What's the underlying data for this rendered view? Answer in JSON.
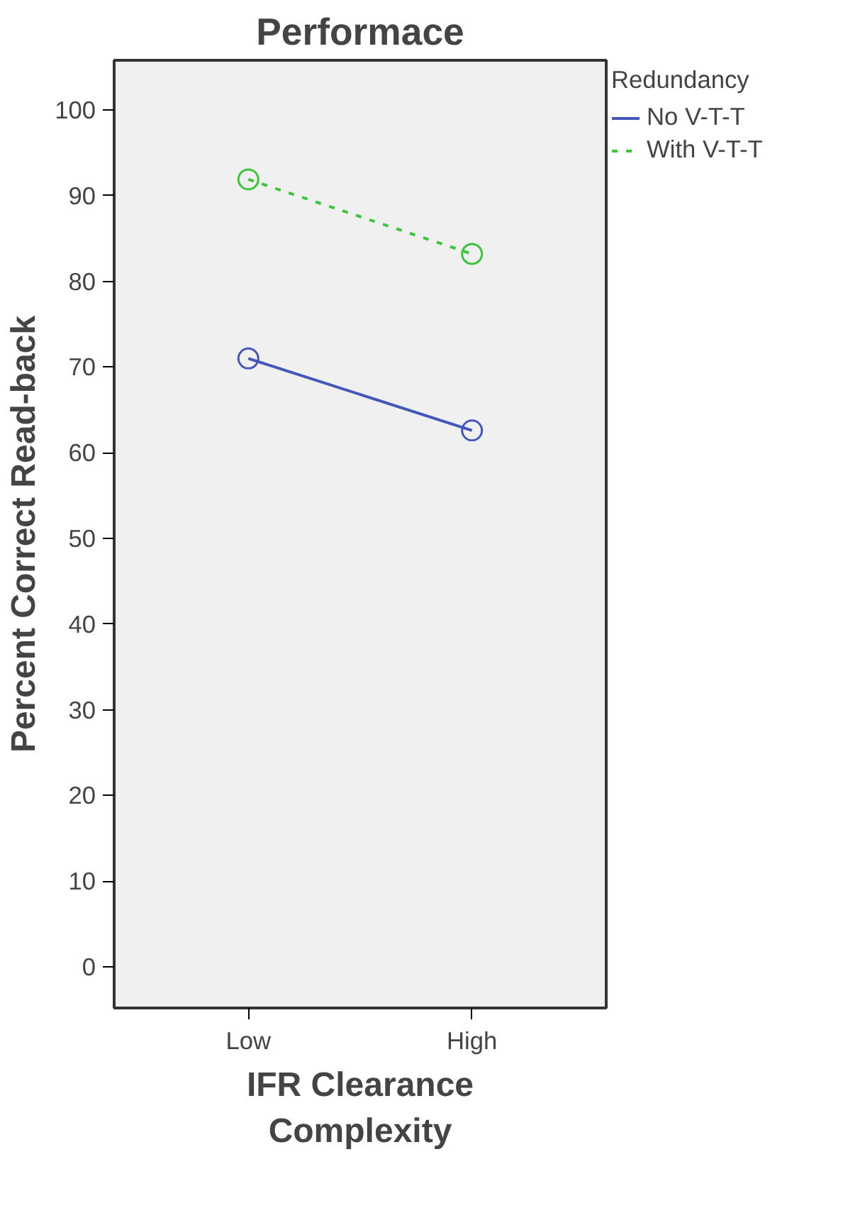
{
  "chart_data": {
    "type": "line",
    "title": "Performace",
    "xlabel": "IFR Clearance\nComplexity",
    "ylabel": "Percent Correct Read-back",
    "legend_title": "Redundancy",
    "categories": [
      "Low",
      "High"
    ],
    "series": [
      {
        "name": "No V-T-T",
        "color": "#4457b8",
        "values": [
          71.0,
          62.6
        ],
        "line_style": "solid"
      },
      {
        "name": "With V-T-T",
        "color": "#3cc43c",
        "values": [
          91.9,
          83.2
        ],
        "line_style": "dashed"
      }
    ],
    "ylim": [
      -4.8,
      105.8
    ],
    "yticks": [
      0,
      10,
      20,
      30,
      40,
      50,
      60,
      70,
      80,
      90,
      100
    ],
    "marker": "circle",
    "grid": false,
    "legend": "top right"
  }
}
